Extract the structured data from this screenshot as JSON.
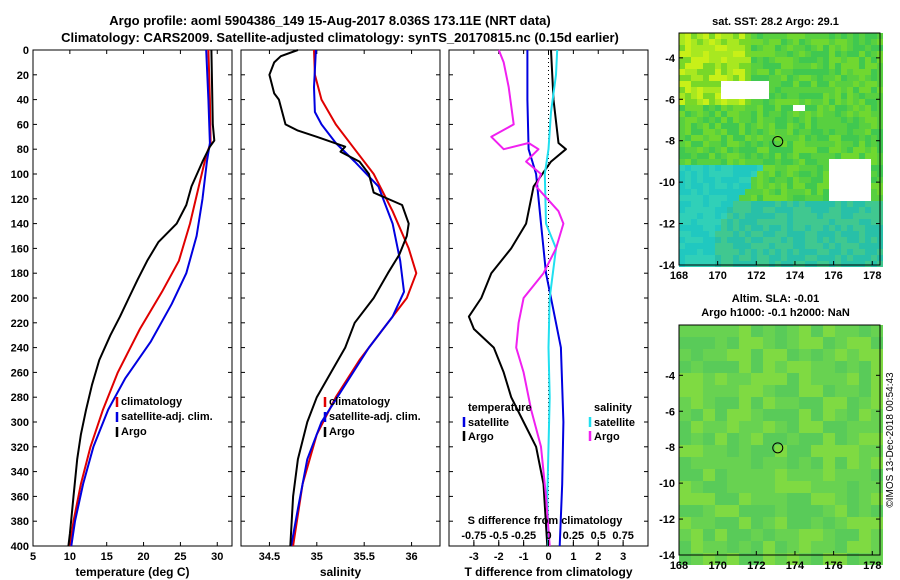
{
  "title_line1": "Argo profile: aoml 5904386_149 15-Aug-2017 8.036S 173.11E (NRT data)",
  "title_line2": "Climatology: CARS2009. Satellite-adjusted climatology: synTS_20170815.nc (0.15d earlier)",
  "stamp": "©IMOS 13-Dec-2018 00:54:43",
  "colors": {
    "climatology": "#e00000",
    "satellite": "#0000e0",
    "argo": "#000000",
    "sal_satellite": "#20e0f0",
    "sal_argo": "#f020f0"
  },
  "chart_data": [
    {
      "id": "temperature",
      "type": "line",
      "xlabel": "temperature (deg C)",
      "ylabel": "",
      "xlim": [
        5,
        32
      ],
      "ylim": [
        0,
        400
      ],
      "y_reversed": true,
      "xticks": [
        "5",
        "10",
        "15",
        "20",
        "25",
        "30"
      ],
      "xtick_values": [
        5,
        10,
        15,
        20,
        25,
        30
      ],
      "yticks": [
        "0",
        "20",
        "40",
        "60",
        "80",
        "100",
        "120",
        "140",
        "160",
        "180",
        "200",
        "220",
        "240",
        "260",
        "280",
        "300",
        "320",
        "340",
        "360",
        "380",
        "400"
      ],
      "legend": [
        "climatology",
        "satellite-adj. clim.",
        "Argo"
      ],
      "series": [
        {
          "name": "climatology",
          "color": "#e00000",
          "points": [
            [
              28.8,
              0
            ],
            [
              29.0,
              40
            ],
            [
              29.1,
              75
            ],
            [
              28.5,
              85
            ],
            [
              27.5,
              110
            ],
            [
              26.3,
              140
            ],
            [
              24.8,
              170
            ],
            [
              22.5,
              195
            ],
            [
              19.5,
              225
            ],
            [
              16.5,
              260
            ],
            [
              14.5,
              290
            ],
            [
              12.8,
              320
            ],
            [
              11.5,
              350
            ],
            [
              10.5,
              380
            ],
            [
              10.0,
              400
            ]
          ]
        },
        {
          "name": "satellite-adj. clim.",
          "color": "#0000e0",
          "points": [
            [
              28.5,
              0
            ],
            [
              28.8,
              40
            ],
            [
              29.0,
              75
            ],
            [
              28.6,
              90
            ],
            [
              28.0,
              120
            ],
            [
              27.2,
              150
            ],
            [
              25.8,
              180
            ],
            [
              23.8,
              205
            ],
            [
              21.0,
              235
            ],
            [
              17.5,
              265
            ],
            [
              15.2,
              290
            ],
            [
              13.2,
              320
            ],
            [
              11.8,
              350
            ],
            [
              10.7,
              380
            ],
            [
              10.2,
              400
            ]
          ]
        },
        {
          "name": "Argo",
          "color": "#000000",
          "points": [
            [
              29.2,
              0
            ],
            [
              29.3,
              30
            ],
            [
              29.4,
              60
            ],
            [
              29.6,
              73
            ],
            [
              29.0,
              78
            ],
            [
              28.0,
              90
            ],
            [
              26.5,
              110
            ],
            [
              25.8,
              125
            ],
            [
              24.5,
              140
            ],
            [
              22.0,
              155
            ],
            [
              20.5,
              170
            ],
            [
              19.2,
              185
            ],
            [
              18.0,
              200
            ],
            [
              16.8,
              215
            ],
            [
              15.5,
              230
            ],
            [
              14.0,
              250
            ],
            [
              13.0,
              270
            ],
            [
              12.2,
              290
            ],
            [
              11.5,
              310
            ],
            [
              11.0,
              330
            ],
            [
              10.5,
              360
            ],
            [
              10.0,
              390
            ],
            [
              9.8,
              400
            ]
          ]
        }
      ]
    },
    {
      "id": "salinity",
      "type": "line",
      "xlabel": "salinity",
      "ylabel": "",
      "xlim": [
        34.2,
        36.3
      ],
      "ylim": [
        0,
        400
      ],
      "y_reversed": true,
      "xticks": [
        "34.5",
        "35",
        "35.5",
        "36"
      ],
      "xtick_values": [
        34.5,
        35,
        35.5,
        36
      ],
      "legend": [
        "climatology",
        "satellite-adj. clim.",
        "Argo"
      ],
      "series": [
        {
          "name": "climatology",
          "color": "#e00000",
          "points": [
            [
              34.97,
              0
            ],
            [
              34.98,
              20
            ],
            [
              35.05,
              40
            ],
            [
              35.2,
              60
            ],
            [
              35.4,
              80
            ],
            [
              35.6,
              100
            ],
            [
              35.8,
              130
            ],
            [
              35.97,
              160
            ],
            [
              36.05,
              180
            ],
            [
              35.95,
              200
            ],
            [
              35.7,
              225
            ],
            [
              35.45,
              250
            ],
            [
              35.2,
              280
            ],
            [
              35.0,
              310
            ],
            [
              34.85,
              350
            ],
            [
              34.75,
              400
            ]
          ]
        },
        {
          "name": "satellite-adj. clim.",
          "color": "#0000e0",
          "points": [
            [
              34.99,
              0
            ],
            [
              34.97,
              30
            ],
            [
              34.98,
              50
            ],
            [
              35.05,
              60
            ],
            [
              35.2,
              75
            ],
            [
              35.4,
              90
            ],
            [
              35.65,
              110
            ],
            [
              35.8,
              140
            ],
            [
              35.88,
              170
            ],
            [
              35.92,
              195
            ],
            [
              35.8,
              215
            ],
            [
              35.55,
              240
            ],
            [
              35.3,
              270
            ],
            [
              35.05,
              300
            ],
            [
              34.9,
              330
            ],
            [
              34.8,
              370
            ],
            [
              34.73,
              400
            ]
          ]
        },
        {
          "name": "Argo",
          "color": "#000000",
          "points": [
            [
              34.8,
              0
            ],
            [
              34.62,
              5
            ],
            [
              34.55,
              10
            ],
            [
              34.5,
              20
            ],
            [
              34.55,
              35
            ],
            [
              34.6,
              40
            ],
            [
              34.67,
              60
            ],
            [
              34.8,
              65
            ],
            [
              35.0,
              70
            ],
            [
              35.3,
              78
            ],
            [
              35.25,
              82
            ],
            [
              35.45,
              90
            ],
            [
              35.55,
              100
            ],
            [
              35.6,
              115
            ],
            [
              35.9,
              125
            ],
            [
              35.97,
              140
            ],
            [
              35.95,
              150
            ],
            [
              35.87,
              165
            ],
            [
              35.75,
              180
            ],
            [
              35.6,
              200
            ],
            [
              35.4,
              220
            ],
            [
              35.3,
              240
            ],
            [
              35.15,
              260
            ],
            [
              35.0,
              280
            ],
            [
              34.9,
              300
            ],
            [
              34.8,
              330
            ],
            [
              34.75,
              360
            ],
            [
              34.72,
              400
            ]
          ]
        }
      ]
    },
    {
      "id": "difference",
      "type": "line",
      "xlabel": "T difference from climatology",
      "ylabel": "",
      "top_axis_label": "S difference from climatology",
      "top_ticks": [
        "-0.75",
        "-0.5",
        "-0.25",
        "0",
        "0.25",
        "0.5",
        "0.75"
      ],
      "xlim": [
        -4,
        4
      ],
      "ylim": [
        0,
        400
      ],
      "y_reversed": true,
      "xticks": [
        "-3",
        "-2",
        "-1",
        "0",
        "1",
        "2",
        "3"
      ],
      "xtick_values": [
        -3,
        -2,
        -1,
        0,
        1,
        2,
        3
      ],
      "legend_temperature": {
        "title": "temperature",
        "items": [
          "satellite",
          "Argo"
        ]
      },
      "legend_salinity": {
        "title": "salinity",
        "items": [
          "satellite",
          "Argo"
        ]
      },
      "series": [
        {
          "name": "T satellite",
          "color": "#0000e0",
          "points": [
            [
              -0.85,
              0
            ],
            [
              -0.85,
              40
            ],
            [
              -0.8,
              80
            ],
            [
              -0.5,
              100
            ],
            [
              -0.3,
              140
            ],
            [
              -0.1,
              180
            ],
            [
              0.2,
              210
            ],
            [
              0.5,
              240
            ],
            [
              0.6,
              300
            ],
            [
              0.55,
              350
            ],
            [
              0.45,
              400
            ]
          ]
        },
        {
          "name": "T Argo",
          "color": "#000000",
          "points": [
            [
              0.1,
              0
            ],
            [
              0.2,
              40
            ],
            [
              0.4,
              75
            ],
            [
              0.7,
              80
            ],
            [
              0.1,
              90
            ],
            [
              -0.6,
              110
            ],
            [
              -0.9,
              140
            ],
            [
              -1.5,
              160
            ],
            [
              -2.3,
              180
            ],
            [
              -2.7,
              200
            ],
            [
              -3.2,
              215
            ],
            [
              -3.0,
              225
            ],
            [
              -2.2,
              240
            ],
            [
              -1.8,
              260
            ],
            [
              -1.5,
              280
            ],
            [
              -1.0,
              300
            ],
            [
              -0.5,
              320
            ],
            [
              -0.2,
              350
            ],
            [
              -0.05,
              400
            ]
          ]
        },
        {
          "name": "S satellite",
          "color": "#20e0f0",
          "points": [
            [
              0.35,
              0
            ],
            [
              0.3,
              20
            ],
            [
              0.1,
              50
            ],
            [
              0.0,
              80
            ],
            [
              -0.15,
              100
            ],
            [
              -0.1,
              140
            ],
            [
              0.3,
              160
            ],
            [
              0.05,
              200
            ],
            [
              0.0,
              240
            ],
            [
              0.05,
              280
            ],
            [
              0.0,
              320
            ],
            [
              -0.05,
              360
            ],
            [
              0.0,
              400
            ]
          ]
        },
        {
          "name": "S Argo",
          "color": "#f020f0",
          "points": [
            [
              -2.0,
              0
            ],
            [
              -1.8,
              10
            ],
            [
              -1.6,
              30
            ],
            [
              -1.4,
              60
            ],
            [
              -2.3,
              70
            ],
            [
              -1.8,
              80
            ],
            [
              -0.8,
              75
            ],
            [
              -0.4,
              80
            ],
            [
              -0.9,
              90
            ],
            [
              -0.3,
              100
            ],
            [
              -0.5,
              110
            ],
            [
              0.4,
              130
            ],
            [
              0.6,
              140
            ],
            [
              0.3,
              160
            ],
            [
              -0.2,
              180
            ],
            [
              -1.0,
              200
            ],
            [
              -1.2,
              220
            ],
            [
              -1.3,
              240
            ],
            [
              -1.0,
              260
            ],
            [
              -0.7,
              290
            ],
            [
              -0.3,
              320
            ],
            [
              -0.1,
              360
            ],
            [
              0.05,
              400
            ]
          ]
        }
      ]
    },
    {
      "id": "sst_map",
      "type": "heatmap",
      "title": "sat. SST: 28.2 Argo: 29.1",
      "xlim": [
        168,
        178.4
      ],
      "ylim": [
        -14,
        -2.8
      ],
      "xticks": [
        "168",
        "170",
        "172",
        "174",
        "176",
        "178"
      ],
      "xtick_values": [
        168,
        170,
        172,
        174,
        176,
        178
      ],
      "yticks": [
        "-4",
        "-6",
        "-8",
        "-10",
        "-12",
        "-14"
      ],
      "ytick_values": [
        -4,
        -6,
        -8,
        -10,
        -12,
        -14
      ],
      "argo_position": [
        173.11,
        -8.036
      ]
    },
    {
      "id": "sla_map",
      "type": "heatmap",
      "title": "Altim. SLA: -0.01",
      "subtitle": "Argo h1000: -0.1 h2000: NaN",
      "xlim": [
        168,
        178.4
      ],
      "ylim": [
        -14,
        -1.2
      ],
      "xticks": [
        "168",
        "170",
        "172",
        "174",
        "176",
        "178"
      ],
      "xtick_values": [
        168,
        170,
        172,
        174,
        176,
        178
      ],
      "yticks": [
        "-4",
        "-6",
        "-8",
        "-10",
        "-12",
        "-14"
      ],
      "ytick_values": [
        -4,
        -6,
        -8,
        -10,
        -12,
        -14
      ],
      "argo_position": [
        173.11,
        -8.036
      ]
    }
  ]
}
